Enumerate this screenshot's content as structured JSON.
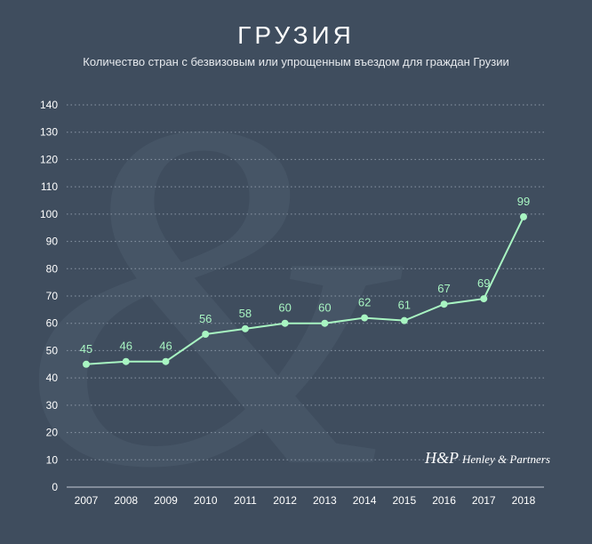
{
  "title": "ГРУЗИЯ",
  "subtitle": "Количество стран с безвизовым или упрощенным въездом для граждан Грузии",
  "logo": {
    "monogram": "H&P",
    "name": "Henley & Partners"
  },
  "colors": {
    "background": "#3f4d5e",
    "line": "#a8f5c2",
    "text": "#ffffff",
    "grid": "#8b97a6"
  },
  "chart_data": {
    "type": "line",
    "title": "ГРУЗИЯ",
    "subtitle": "Количество стран с безвизовым или упрощенным въездом для граждан Грузии",
    "xlabel": "",
    "ylabel": "",
    "categories": [
      "2007",
      "2008",
      "2009",
      "2010",
      "2011",
      "2012",
      "2013",
      "2014",
      "2015",
      "2016",
      "2017",
      "2018"
    ],
    "values": [
      45,
      46,
      46,
      56,
      58,
      60,
      60,
      62,
      61,
      67,
      69,
      99
    ],
    "ylim": [
      0,
      140
    ],
    "yticks": [
      0,
      10,
      20,
      30,
      40,
      50,
      60,
      70,
      80,
      90,
      100,
      110,
      120,
      130,
      140
    ],
    "grid": true,
    "legend": "none"
  }
}
